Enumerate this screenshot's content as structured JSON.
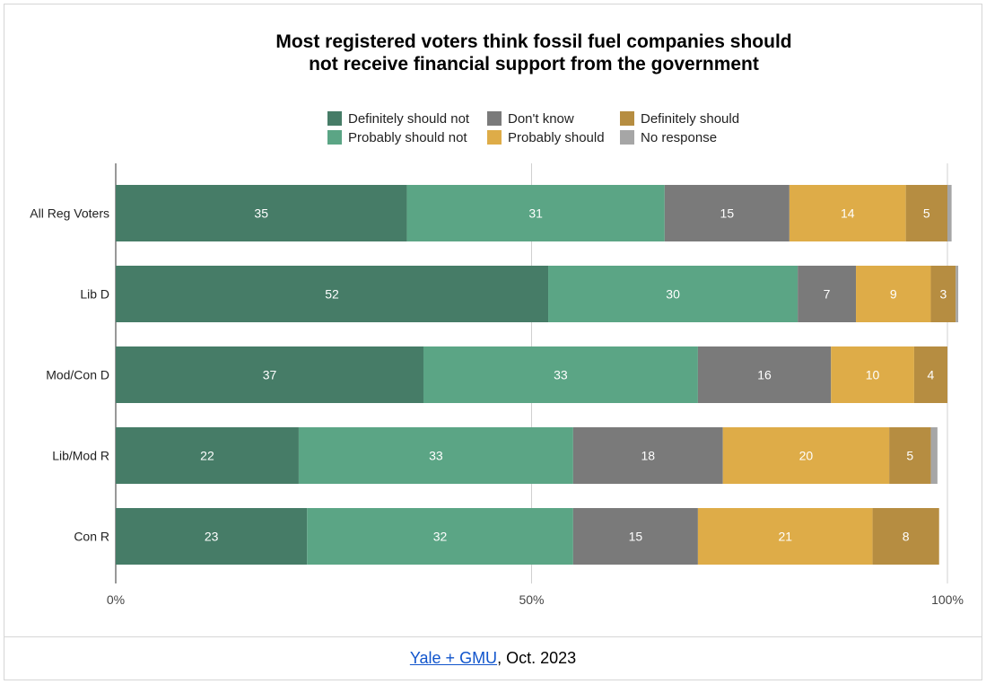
{
  "chart_data": {
    "type": "bar",
    "orientation": "horizontal",
    "stacked": true,
    "title": [
      "Most registered voters think fossil fuel companies should",
      "not receive financial support from the government"
    ],
    "categories": [
      "All Reg Voters",
      "Lib D",
      "Mod/Con D",
      "Lib/Mod R",
      "Con R"
    ],
    "series": [
      {
        "name": "Definitely should not",
        "color": "#467c67",
        "values": [
          35,
          52,
          37,
          22,
          23
        ]
      },
      {
        "name": "Probably should not",
        "color": "#5ba585",
        "values": [
          31,
          30,
          33,
          33,
          32
        ]
      },
      {
        "name": "Don't know",
        "color": "#7a7a7a",
        "values": [
          15,
          7,
          16,
          18,
          15
        ]
      },
      {
        "name": "Probably should",
        "color": "#deac48",
        "values": [
          14,
          9,
          10,
          20,
          21
        ]
      },
      {
        "name": "Definitely should",
        "color": "#b68d41",
        "values": [
          5,
          3,
          4,
          5,
          8
        ]
      },
      {
        "name": "No response",
        "color": "#a6a6a6",
        "values": [
          0.5,
          0.3,
          0,
          0.8,
          0
        ]
      }
    ],
    "xlim": [
      0,
      100
    ],
    "x_ticks": [
      "0%",
      "50%",
      "100%"
    ],
    "legend_position": "top",
    "grid": true
  },
  "footer": {
    "link_text": "Yale + GMU",
    "rest_text": ", Oct. 2023"
  }
}
